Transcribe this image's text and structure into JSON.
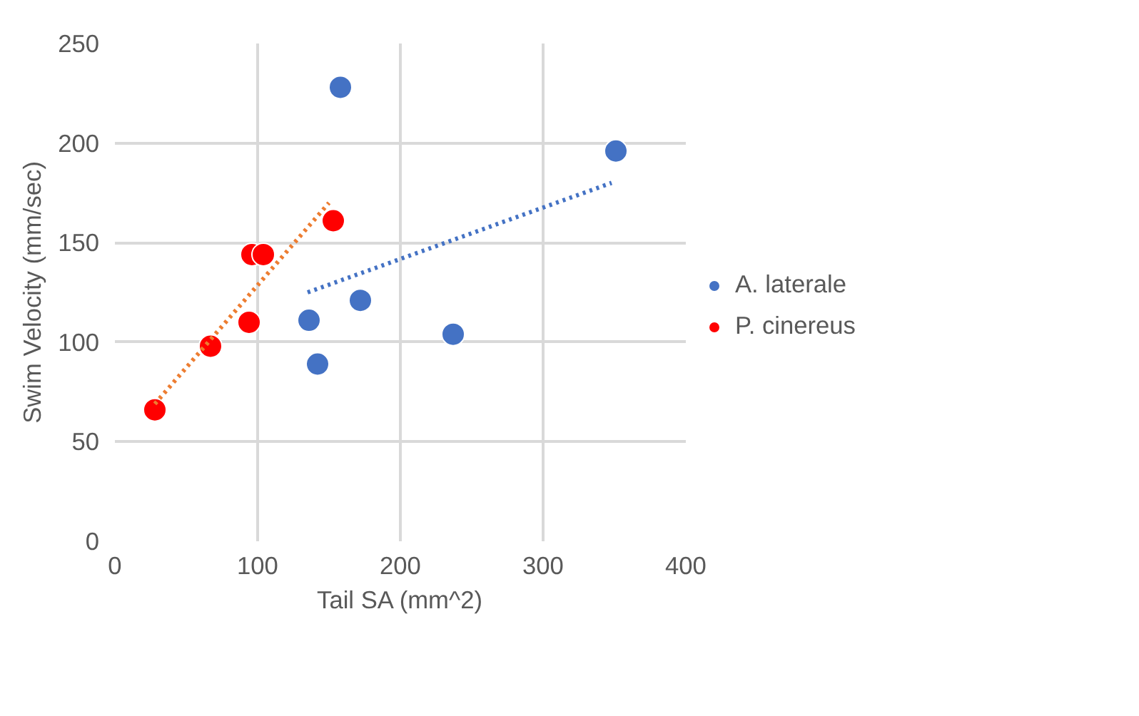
{
  "chart_data": {
    "type": "scatter",
    "xlabel": "Tail SA (mm^2)",
    "ylabel": "Swim Velocity (mm/sec)",
    "xlim": [
      0,
      400
    ],
    "xticks": [
      0,
      100,
      200,
      300,
      400
    ],
    "ylim": [
      0,
      250
    ],
    "yticks": [
      0,
      50,
      100,
      150,
      200,
      250
    ],
    "grid": true,
    "legend": "right",
    "marker": "circle",
    "series": [
      {
        "name": "A. laterale",
        "color": "#4472c4",
        "x": [
          158,
          351,
          172,
          136,
          142,
          237
        ],
        "values": [
          228,
          196,
          121,
          111,
          89,
          104
        ]
      },
      {
        "name": "P. cinereus",
        "color": "#ff0000",
        "x": [
          28,
          67,
          94,
          96,
          104,
          153
        ],
        "values": [
          66,
          98,
          110,
          144,
          144,
          161
        ]
      },
      {
        "type": "line",
        "line_style": "dotted",
        "marker": "none",
        "color": "#4472c4",
        "x": [
          135,
          348
        ],
        "values": [
          125,
          180
        ]
      },
      {
        "type": "line",
        "line_style": "dotted",
        "marker": "none",
        "color": "#ed7d31",
        "x": [
          28,
          150
        ],
        "values": [
          69,
          170
        ]
      }
    ]
  }
}
